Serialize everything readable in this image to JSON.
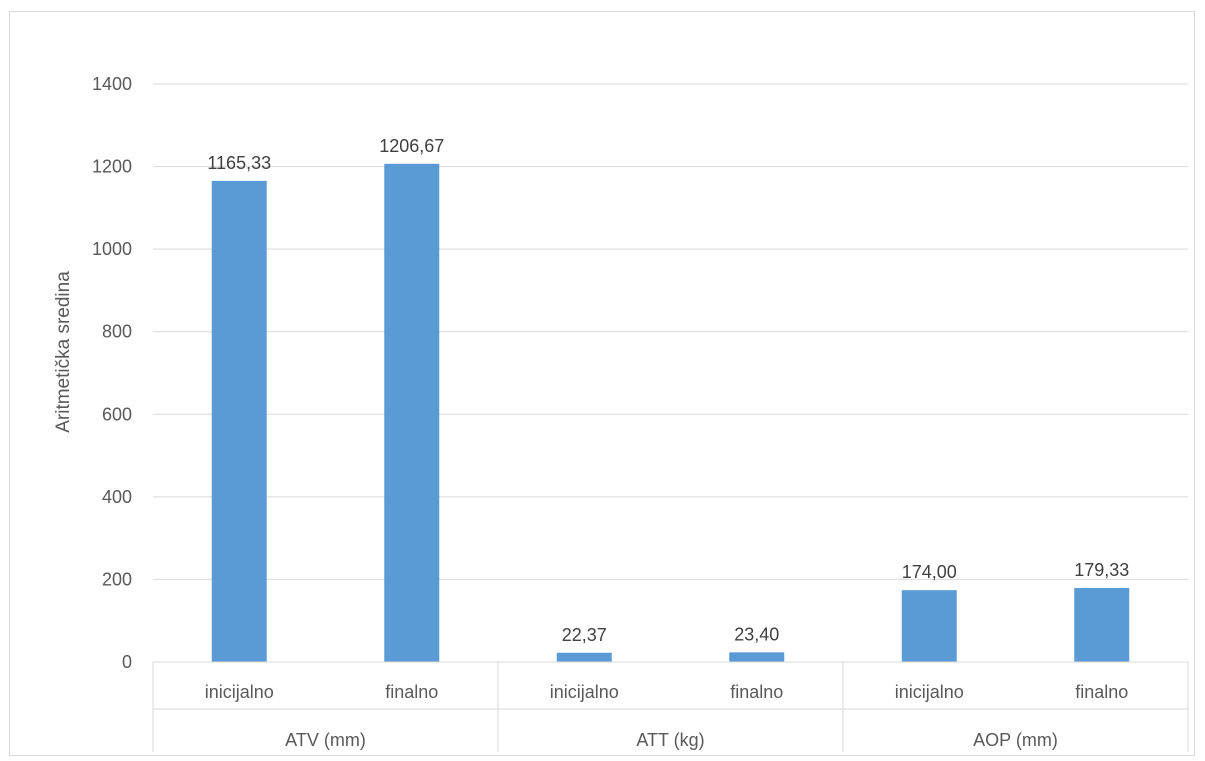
{
  "chart_data": {
    "type": "bar",
    "ylabel": "Aritmetička sredina",
    "ylim": [
      0,
      1400
    ],
    "yticks": [
      0,
      200,
      400,
      600,
      800,
      1000,
      1200,
      1400
    ],
    "grid": true,
    "bar_color": "#5b9bd5",
    "groups": [
      {
        "label": "ATV (mm)",
        "categories": [
          "inicijalno",
          "finalno"
        ],
        "values": [
          1165.33,
          1206.67
        ],
        "data_labels": [
          "1165,33",
          "1206,67"
        ]
      },
      {
        "label": "ATT (kg)",
        "categories": [
          "inicijalno",
          "finalno"
        ],
        "values": [
          22.37,
          23.4
        ],
        "data_labels": [
          "22,37",
          "23,40"
        ]
      },
      {
        "label": "AOP (mm)",
        "categories": [
          "inicijalno",
          "finalno"
        ],
        "values": [
          174.0,
          179.33
        ],
        "data_labels": [
          "174,00",
          "179,33"
        ]
      }
    ]
  }
}
